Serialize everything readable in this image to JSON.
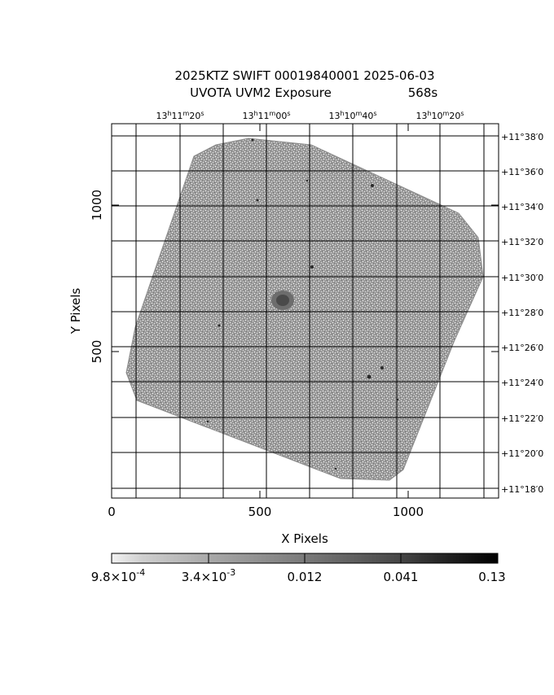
{
  "title": {
    "line1": "2025KTZ SWIFT 00019840001 2025-06-03",
    "line2_prefix": "UVOTA UVM2 Exposure",
    "line2_value": "568s"
  },
  "image": {
    "description_hidden": false,
    "x_range": [
      0,
      1300
    ],
    "y_range": [
      0,
      1250
    ]
  },
  "axes": {
    "x_label": "X Pixels",
    "y_label": "Y Pixels",
    "x_ticks": [
      "0",
      "500",
      "1000"
    ],
    "y_ticks": [
      "500",
      "1000"
    ],
    "ra_labels": [
      {
        "h": "13",
        "m": "11",
        "s": "20"
      },
      {
        "h": "13",
        "m": "11",
        "s": "00"
      },
      {
        "h": "13",
        "m": "10",
        "s": "40"
      },
      {
        "h": "13",
        "m": "10",
        "s": "20"
      }
    ],
    "dec_labels": [
      "+11°38′0",
      "+11°36′0",
      "+11°34′0",
      "+11°32′0",
      "+11°30′0",
      "+11°28′0",
      "+11°26′0",
      "+11°24′0",
      "+11°22′0",
      "+11°20′0",
      "+11°18′0"
    ]
  },
  "colorbar": {
    "labels": [
      {
        "mantissa": "9.8",
        "exp": "-4"
      },
      {
        "mantissa": "3.4",
        "exp": "-3"
      },
      {
        "text": "0.012"
      },
      {
        "text": "0.041"
      },
      {
        "text": "0.13"
      }
    ]
  }
}
